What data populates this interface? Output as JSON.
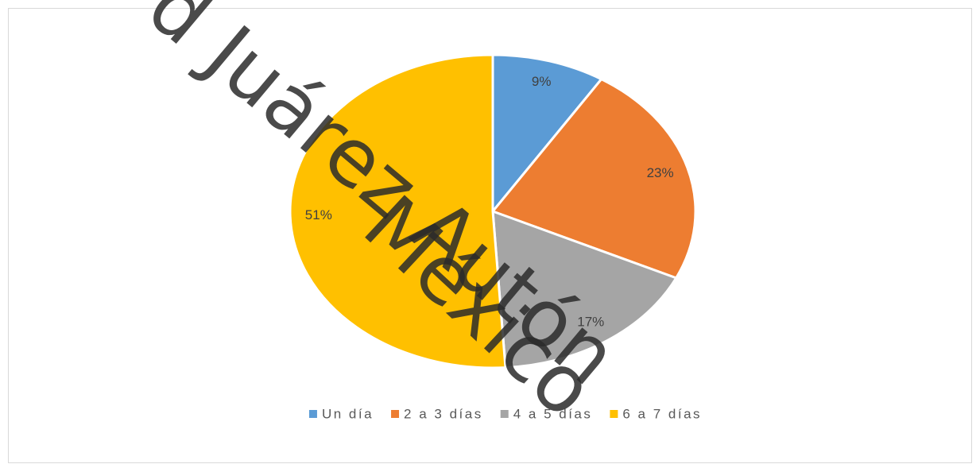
{
  "chart_data": {
    "type": "pie",
    "categories": [
      "Un día",
      "2 a 3 días",
      "4 a 5 días",
      "6 a 7 días"
    ],
    "values": [
      9,
      23,
      17,
      51
    ],
    "value_labels": [
      "9%",
      "23%",
      "17%",
      "51%"
    ],
    "colors": [
      "#5b9bd5",
      "#ed7d31",
      "#a5a5a5",
      "#ffc000"
    ],
    "legend": "bottom",
    "annotations": [
      "d Juárez Autón",
      "México"
    ]
  }
}
